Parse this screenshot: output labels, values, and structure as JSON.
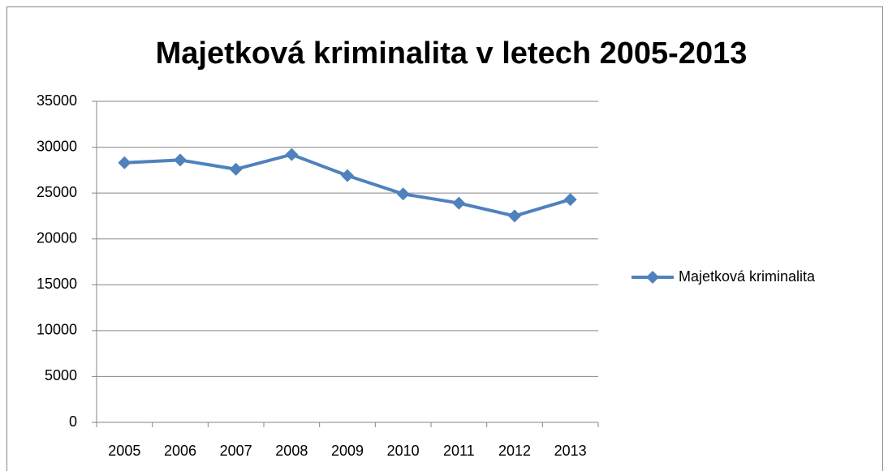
{
  "chart_data": {
    "type": "line",
    "title": "Majetková kriminalita v letech 2005-2013",
    "categories": [
      "2005",
      "2006",
      "2007",
      "2008",
      "2009",
      "2010",
      "2011",
      "2012",
      "2013"
    ],
    "series": [
      {
        "name": "Majetková kriminalita",
        "color": "#4f81bd",
        "values": [
          28300,
          28600,
          27600,
          29200,
          26900,
          24900,
          23900,
          22500,
          24300
        ]
      }
    ],
    "ylim": [
      0,
      35000
    ],
    "yticks": [
      0,
      5000,
      10000,
      15000,
      20000,
      25000,
      30000,
      35000
    ],
    "grid": true,
    "legend": "right"
  }
}
